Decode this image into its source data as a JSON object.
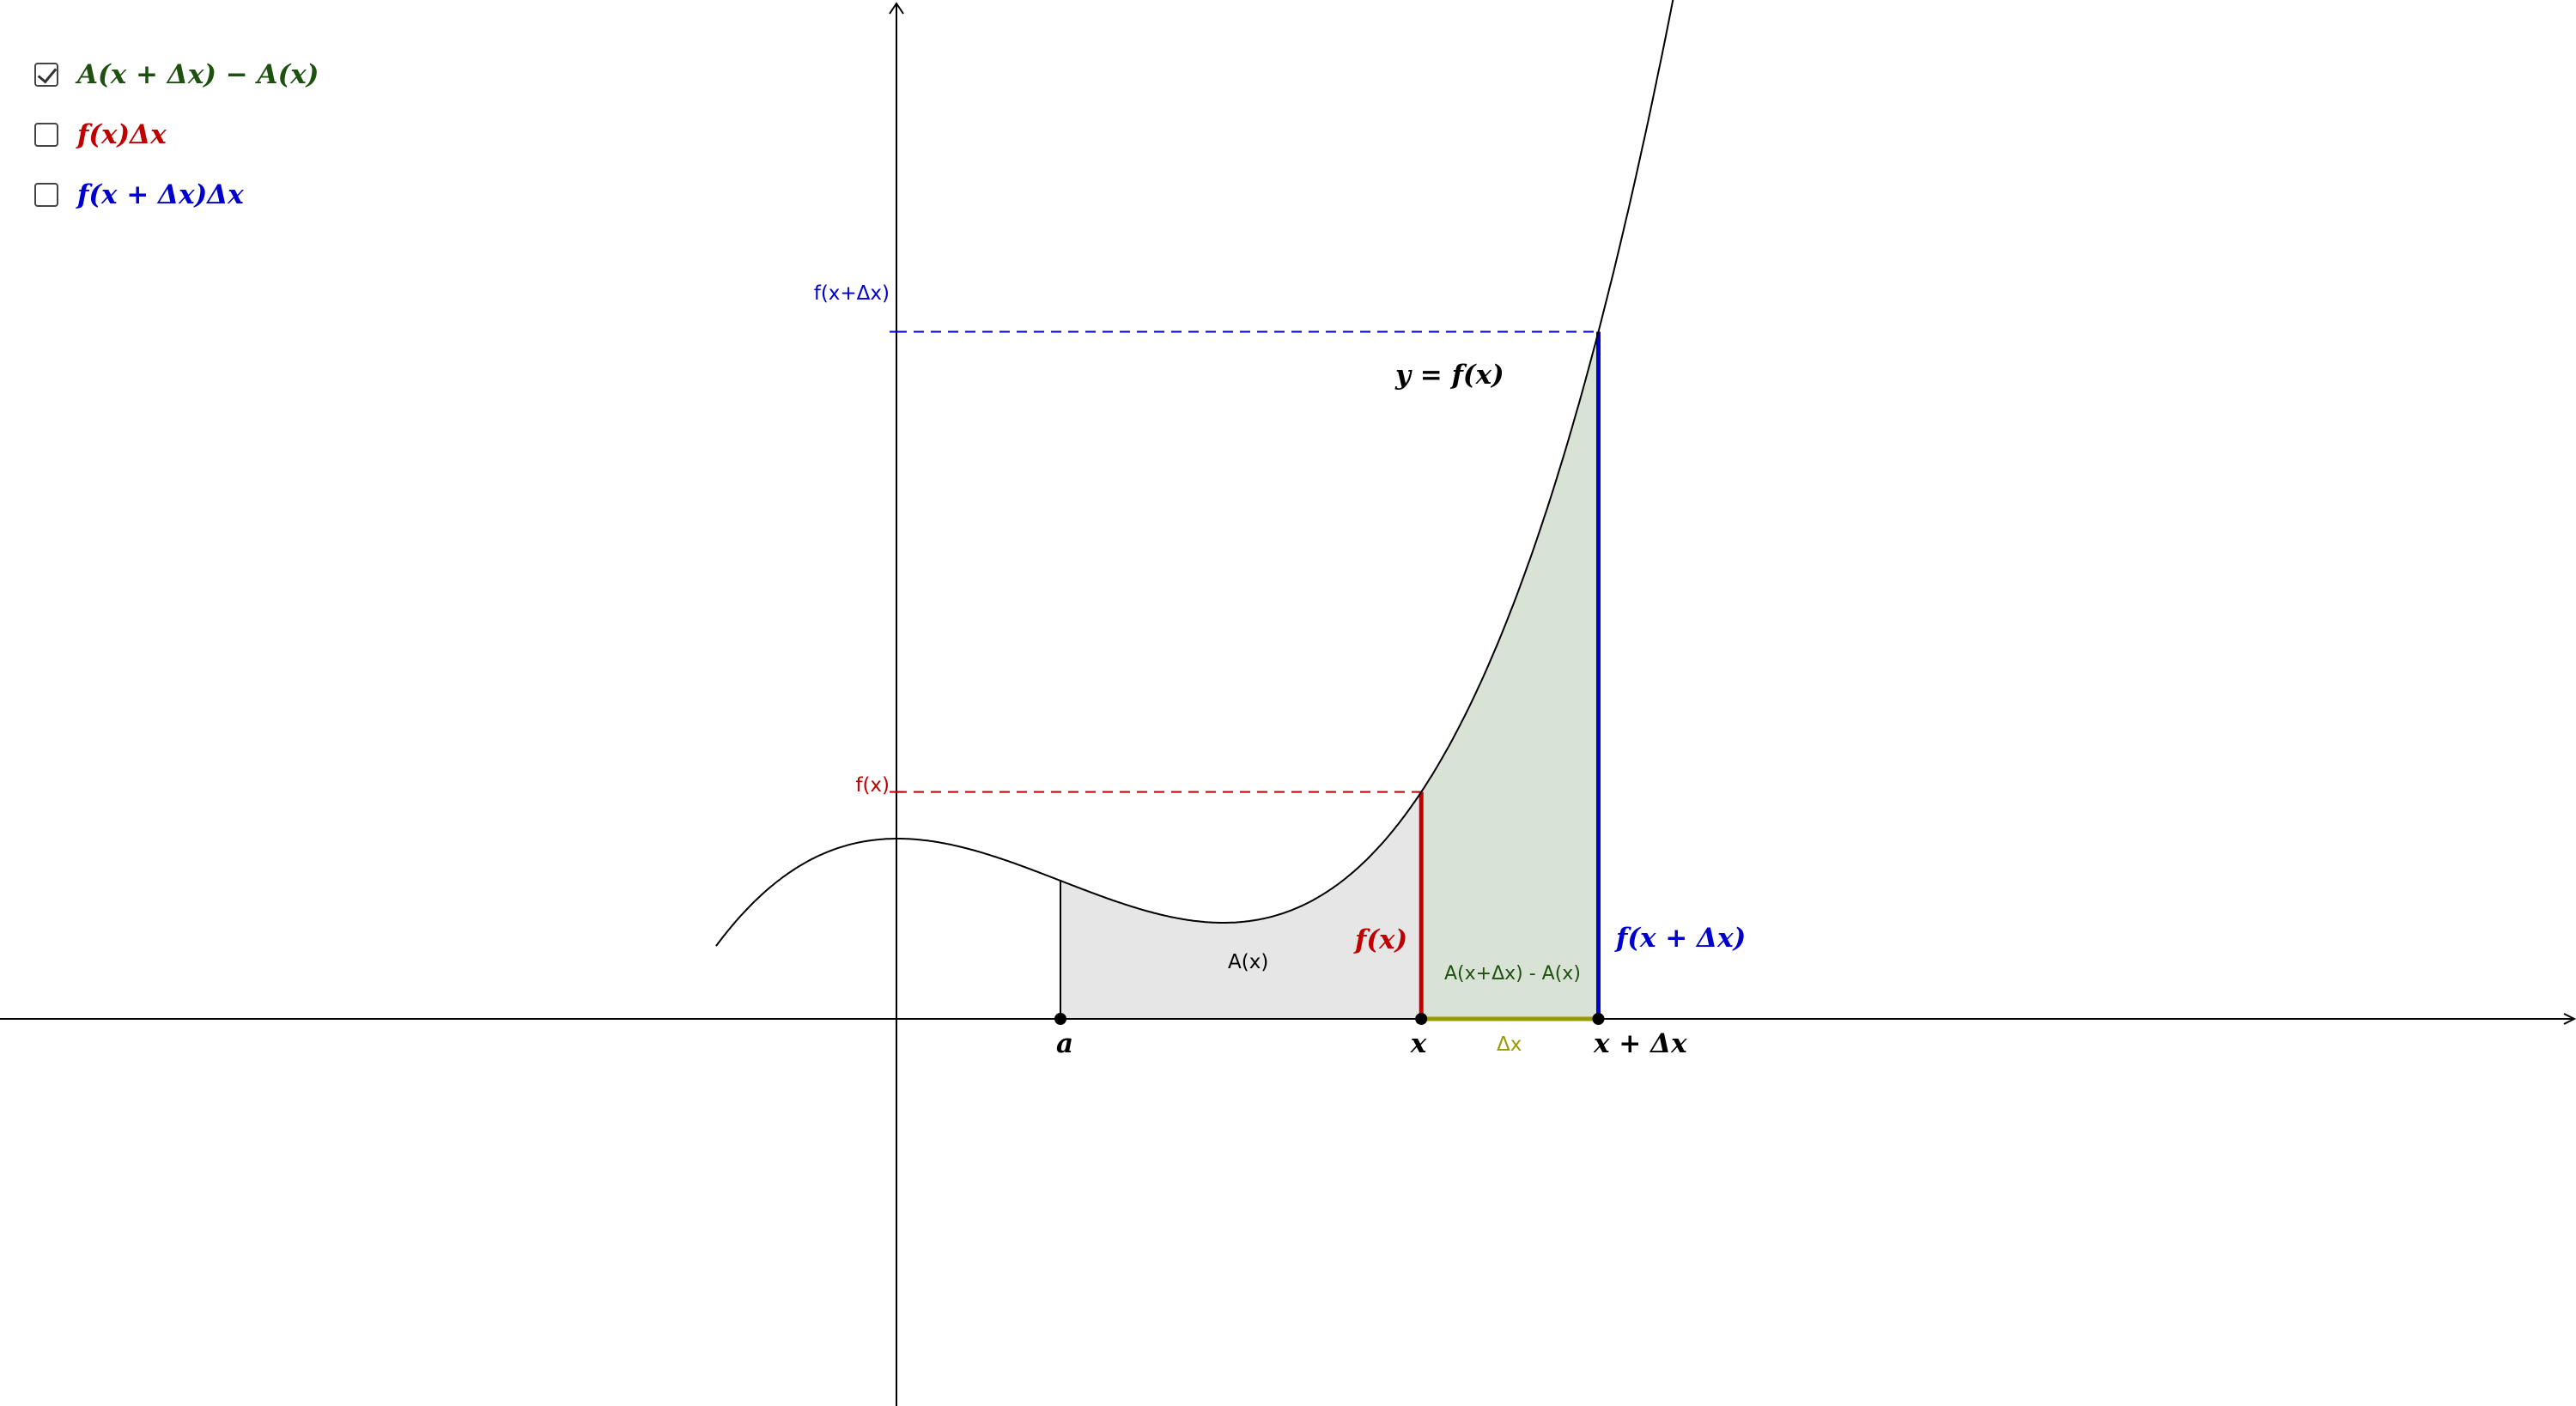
{
  "colors": {
    "green": "#1e5010",
    "red": "#c00000",
    "blue": "#0000cc",
    "olive": "#999900",
    "gray_fill": "#e6e6e6",
    "green_fill": "#d8e3d6"
  },
  "controls": [
    {
      "label": "A(x + Δx) − A(x)",
      "checked": true,
      "color": "#1e5010"
    },
    {
      "label": "f(x)Δx",
      "checked": false,
      "color": "#c00000"
    },
    {
      "label": "f(x + Δx)Δx",
      "checked": false,
      "color": "#0000cc"
    }
  ],
  "labels": {
    "curve": "y = f(x)",
    "fx_axis": "f(x)",
    "fxdx_axis": "f(x+Δx)",
    "fx_seg": "f(x)",
    "fxdx_seg": "f(x + Δx)",
    "area": "A(x)",
    "area_diff": "A(x+Δx) - A(x)",
    "dx": "Δx",
    "a": "a",
    "x": "x",
    "x_dx": "x + Δx"
  },
  "points": {
    "a": 0.5,
    "x": 1.6,
    "x_dx": 2.14
  }
}
